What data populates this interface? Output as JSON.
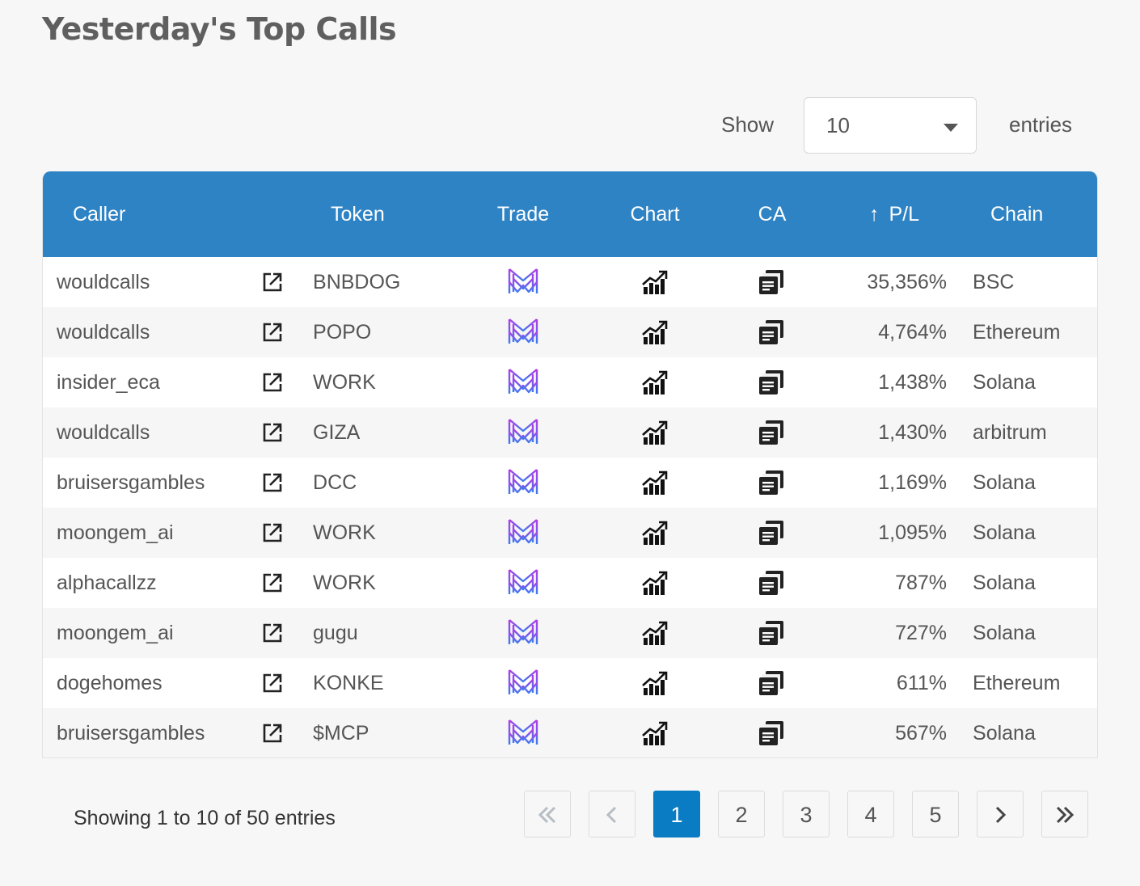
{
  "page": {
    "title": "Yesterday's Top Calls"
  },
  "length_menu": {
    "show_label": "Show",
    "selected": "10",
    "entries_label": "entries"
  },
  "table": {
    "columns": {
      "caller": "Caller",
      "token": "Token",
      "trade": "Trade",
      "chart": "Chart",
      "ca": "CA",
      "pl": "P/L",
      "chain": "Chain"
    },
    "sort_icon": "arrow-up-icon",
    "rows": [
      {
        "caller": "wouldcalls",
        "token": "BNBDOG",
        "pl": "35,356%",
        "chain": "BSC"
      },
      {
        "caller": "wouldcalls",
        "token": "POPO",
        "pl": "4,764%",
        "chain": "Ethereum"
      },
      {
        "caller": "insider_eca",
        "token": "WORK",
        "pl": "1,438%",
        "chain": "Solana"
      },
      {
        "caller": "wouldcalls",
        "token": "GIZA",
        "pl": "1,430%",
        "chain": "arbitrum"
      },
      {
        "caller": "bruisersgambles",
        "token": "DCC",
        "pl": "1,169%",
        "chain": "Solana"
      },
      {
        "caller": "moongem_ai",
        "token": "WORK",
        "pl": "1,095%",
        "chain": "Solana"
      },
      {
        "caller": "alphacallzz",
        "token": "WORK",
        "pl": "787%",
        "chain": "Solana"
      },
      {
        "caller": "moongem_ai",
        "token": "gugu",
        "pl": "727%",
        "chain": "Solana"
      },
      {
        "caller": "dogehomes",
        "token": "KONKE",
        "pl": "611%",
        "chain": "Ethereum"
      },
      {
        "caller": "bruisersgambles",
        "token": "$MCP",
        "pl": "567%",
        "chain": "Solana"
      }
    ],
    "row_icons": {
      "link": "external-link-icon",
      "trade": "trade-logo-icon",
      "chart": "chart-up-icon",
      "ca": "copy-icon"
    }
  },
  "footer": {
    "info": "Showing 1 to 10 of 50 entries",
    "pages": [
      "1",
      "2",
      "3",
      "4",
      "5"
    ],
    "current_page": "1"
  },
  "colors": {
    "header_bg": "#2e83c4",
    "active_page": "#0a7cc4",
    "trade_logo_top": "#b13ce6",
    "trade_logo_bottom": "#3d7cf0"
  }
}
